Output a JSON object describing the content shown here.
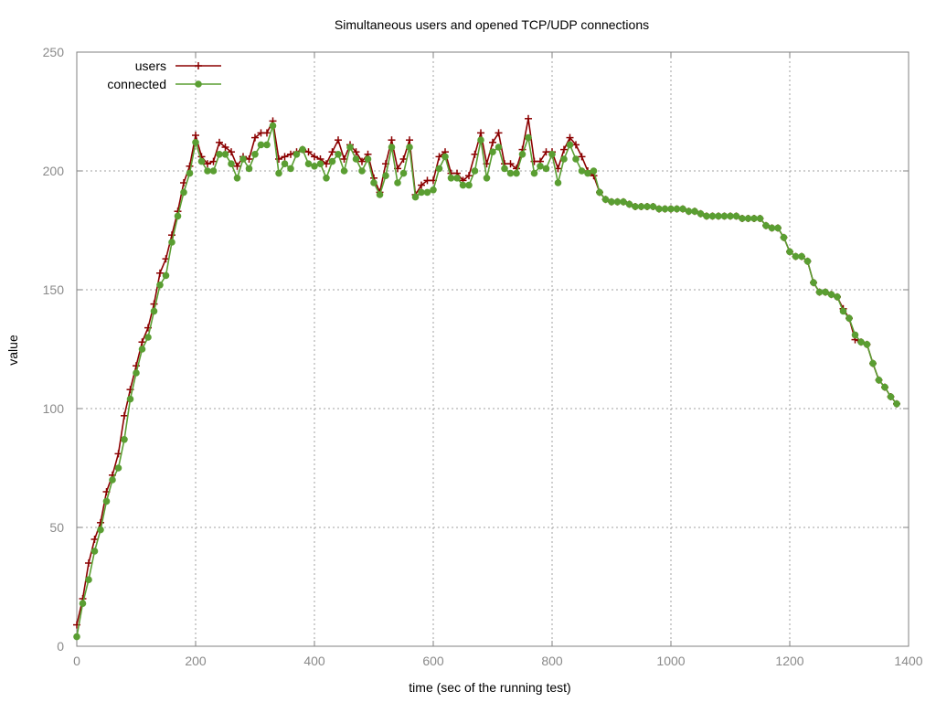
{
  "chart_data": {
    "type": "line",
    "title": "Simultaneous users and opened TCP/UDP connections",
    "xlabel": "time (sec of the running test)",
    "ylabel": "value",
    "xlim": [
      0,
      1400
    ],
    "ylim": [
      0,
      250
    ],
    "xticks": [
      0,
      200,
      400,
      600,
      800,
      1000,
      1200,
      1400
    ],
    "yticks": [
      0,
      50,
      100,
      150,
      200,
      250
    ],
    "grid": true,
    "legend_position": "top-left",
    "series": [
      {
        "name": "users",
        "color": "#8b0000",
        "marker": "plus",
        "x": [
          0,
          10,
          20,
          30,
          40,
          50,
          60,
          70,
          80,
          90,
          100,
          110,
          120,
          130,
          140,
          150,
          160,
          170,
          180,
          190,
          200,
          210,
          220,
          230,
          240,
          250,
          260,
          270,
          280,
          290,
          300,
          310,
          320,
          330,
          340,
          350,
          360,
          370,
          380,
          390,
          400,
          410,
          420,
          430,
          440,
          450,
          460,
          470,
          480,
          490,
          500,
          510,
          520,
          530,
          540,
          550,
          560,
          570,
          580,
          590,
          600,
          610,
          620,
          630,
          640,
          650,
          660,
          670,
          680,
          690,
          700,
          710,
          720,
          730,
          740,
          750,
          760,
          770,
          780,
          790,
          800,
          810,
          820,
          830,
          840,
          850,
          860,
          870,
          880,
          890,
          900,
          910,
          920,
          930,
          940,
          950,
          960,
          970,
          980,
          990,
          1000,
          1010,
          1020,
          1030,
          1040,
          1050,
          1060,
          1070,
          1080,
          1090,
          1100,
          1110,
          1120,
          1130,
          1140,
          1150,
          1160,
          1170,
          1180,
          1190,
          1200,
          1210,
          1220,
          1230,
          1240,
          1250,
          1260,
          1270,
          1280,
          1290,
          1300,
          1310,
          1320,
          1330,
          1340,
          1350,
          1360,
          1370,
          1380
        ],
        "y": [
          9,
          20,
          35,
          45,
          52,
          65,
          72,
          81,
          97,
          108,
          118,
          128,
          134,
          144,
          157,
          163,
          173,
          183,
          195,
          202,
          215,
          206,
          203,
          204,
          212,
          210,
          208,
          202,
          206,
          205,
          214,
          216,
          216,
          221,
          205,
          206,
          207,
          208,
          209,
          208,
          206,
          205,
          203,
          208,
          213,
          205,
          211,
          208,
          204,
          207,
          197,
          191,
          203,
          213,
          201,
          205,
          213,
          190,
          194,
          196,
          196,
          206,
          208,
          199,
          199,
          196,
          198,
          207,
          216,
          203,
          212,
          216,
          203,
          203,
          201,
          209,
          222,
          204,
          204,
          208,
          208,
          201,
          209,
          214,
          211,
          206,
          200,
          198,
          191,
          188,
          187,
          187,
          187,
          186,
          185,
          185,
          185,
          185,
          184,
          184,
          184,
          184,
          184,
          183,
          183,
          182,
          181,
          181,
          181,
          181,
          181,
          181,
          180,
          180,
          180,
          180,
          177,
          176,
          176,
          172,
          166,
          164,
          164,
          162,
          153,
          149,
          149,
          148,
          147,
          142,
          138,
          129,
          128,
          127,
          119,
          112,
          109,
          105,
          102
        ]
      },
      {
        "name": "connected",
        "color": "#5a9e32",
        "marker": "filled-circle",
        "x": [
          0,
          10,
          20,
          30,
          40,
          50,
          60,
          70,
          80,
          90,
          100,
          110,
          120,
          130,
          140,
          150,
          160,
          170,
          180,
          190,
          200,
          210,
          220,
          230,
          240,
          250,
          260,
          270,
          280,
          290,
          300,
          310,
          320,
          330,
          340,
          350,
          360,
          370,
          380,
          390,
          400,
          410,
          420,
          430,
          440,
          450,
          460,
          470,
          480,
          490,
          500,
          510,
          520,
          530,
          540,
          550,
          560,
          570,
          580,
          590,
          600,
          610,
          620,
          630,
          640,
          650,
          660,
          670,
          680,
          690,
          700,
          710,
          720,
          730,
          740,
          750,
          760,
          770,
          780,
          790,
          800,
          810,
          820,
          830,
          840,
          850,
          860,
          870,
          880,
          890,
          900,
          910,
          920,
          930,
          940,
          950,
          960,
          970,
          980,
          990,
          1000,
          1010,
          1020,
          1030,
          1040,
          1050,
          1060,
          1070,
          1080,
          1090,
          1100,
          1110,
          1120,
          1130,
          1140,
          1150,
          1160,
          1170,
          1180,
          1190,
          1200,
          1210,
          1220,
          1230,
          1240,
          1250,
          1260,
          1270,
          1280,
          1290,
          1300,
          1310,
          1320,
          1330,
          1340,
          1350,
          1360,
          1370,
          1380
        ],
        "y": [
          4,
          18,
          28,
          40,
          49,
          61,
          70,
          75,
          87,
          104,
          115,
          125,
          130,
          141,
          152,
          156,
          170,
          181,
          191,
          199,
          212,
          204,
          200,
          200,
          207,
          207,
          203,
          197,
          205,
          201,
          207,
          211,
          211,
          219,
          199,
          203,
          201,
          207,
          209,
          203,
          202,
          203,
          197,
          204,
          207,
          200,
          210,
          205,
          200,
          205,
          195,
          190,
          198,
          210,
          195,
          199,
          210,
          189,
          191,
          191,
          192,
          201,
          206,
          197,
          197,
          194,
          194,
          200,
          213,
          197,
          208,
          210,
          201,
          199,
          199,
          207,
          214,
          199,
          202,
          201,
          207,
          195,
          205,
          211,
          205,
          200,
          199,
          200,
          191,
          188,
          187,
          187,
          187,
          186,
          185,
          185,
          185,
          185,
          184,
          184,
          184,
          184,
          184,
          183,
          183,
          182,
          181,
          181,
          181,
          181,
          181,
          181,
          180,
          180,
          180,
          180,
          177,
          176,
          176,
          172,
          166,
          164,
          164,
          162,
          153,
          149,
          149,
          148,
          147,
          141,
          138,
          131,
          128,
          127,
          119,
          112,
          109,
          105,
          102
        ]
      }
    ]
  }
}
